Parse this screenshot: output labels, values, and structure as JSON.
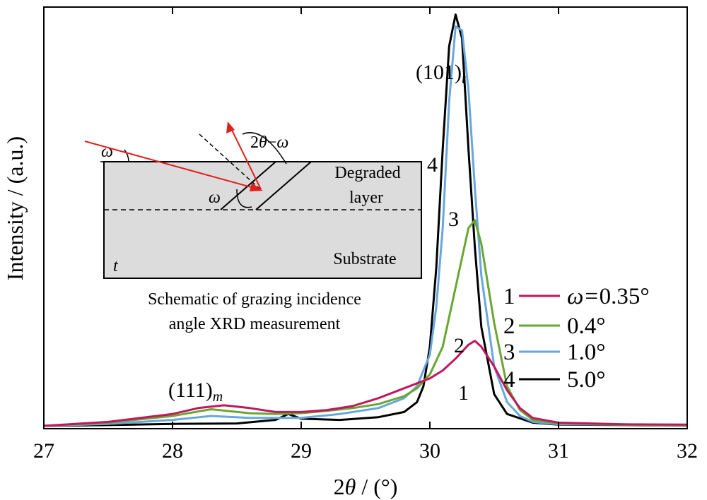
{
  "chart_data": {
    "type": "line",
    "xlabel": {
      "pre": "2",
      "sym": "θ",
      "post": " / (°)"
    },
    "ylabel": "Intensity / (a.u.)",
    "xlim": [
      27,
      32
    ],
    "ylim": [
      0,
      1.05
    ],
    "xticks": [
      "27",
      "28",
      "29",
      "30",
      "31",
      "32"
    ],
    "yticks_shown": false,
    "grid": false,
    "legend": {
      "position": "right",
      "title_prefix": "ω=",
      "entries": [
        {
          "num": "1",
          "label": "0.35°",
          "has_prefix": true,
          "color": "#c0185c"
        },
        {
          "num": "2",
          "label": "0.4°",
          "has_prefix": false,
          "color": "#6aa632"
        },
        {
          "num": "3",
          "label": "1.0°",
          "has_prefix": false,
          "color": "#68a7dc"
        },
        {
          "num": "4",
          "label": "5.0°",
          "has_prefix": false,
          "color": "#000000"
        }
      ]
    },
    "peak_labels": [
      {
        "main": "(101)",
        "sub": "t",
        "x": 30.2
      },
      {
        "main": "(111)",
        "sub": "m",
        "x": 28.2
      }
    ],
    "curve_labels": [
      {
        "text": "1",
        "x": 30.3,
        "y": 0.09
      },
      {
        "text": "2",
        "x": 30.3,
        "y": 0.23
      },
      {
        "text": "3",
        "x": 29.98,
        "y": 0.6
      },
      {
        "text": "4",
        "x": 29.82,
        "y": 0.76
      }
    ],
    "series": [
      {
        "name": "ω=0.35°",
        "color": "#c0185c",
        "x": [
          27.0,
          27.5,
          28.0,
          28.2,
          28.4,
          28.6,
          28.8,
          29.0,
          29.2,
          29.4,
          29.6,
          29.8,
          30.0,
          30.1,
          30.2,
          30.3,
          30.35,
          30.4,
          30.5,
          30.6,
          30.7,
          30.8,
          31.0,
          31.5,
          32.0
        ],
        "y": [
          0.0,
          0.01,
          0.03,
          0.045,
          0.052,
          0.045,
          0.035,
          0.035,
          0.04,
          0.05,
          0.07,
          0.095,
          0.12,
          0.14,
          0.17,
          0.205,
          0.215,
          0.2,
          0.15,
          0.09,
          0.045,
          0.02,
          0.008,
          0.004,
          0.003
        ]
      },
      {
        "name": "0.4°",
        "color": "#6aa632",
        "x": [
          27.0,
          27.5,
          28.0,
          28.3,
          28.6,
          28.8,
          29.0,
          29.2,
          29.4,
          29.6,
          29.8,
          29.9,
          30.0,
          30.1,
          30.2,
          30.3,
          30.35,
          30.4,
          30.5,
          30.6,
          30.7,
          30.8,
          31.0,
          31.5,
          32.0
        ],
        "y": [
          0.0,
          0.008,
          0.025,
          0.042,
          0.032,
          0.03,
          0.032,
          0.038,
          0.045,
          0.055,
          0.075,
          0.095,
          0.13,
          0.2,
          0.35,
          0.5,
          0.52,
          0.46,
          0.26,
          0.1,
          0.04,
          0.015,
          0.006,
          0.003,
          0.002
        ]
      },
      {
        "name": "1.0°",
        "color": "#68a7dc",
        "x": [
          27.0,
          27.5,
          28.0,
          28.3,
          28.6,
          29.0,
          29.3,
          29.6,
          29.8,
          29.9,
          30.0,
          30.05,
          30.1,
          30.15,
          30.2,
          30.25,
          30.3,
          30.35,
          30.4,
          30.5,
          30.6,
          30.7,
          30.8,
          31.0,
          32.0
        ],
        "y": [
          0.0,
          0.005,
          0.015,
          0.025,
          0.02,
          0.02,
          0.03,
          0.045,
          0.07,
          0.1,
          0.18,
          0.3,
          0.5,
          0.82,
          1.01,
          1.0,
          0.85,
          0.6,
          0.38,
          0.15,
          0.06,
          0.025,
          0.01,
          0.004,
          0.002
        ]
      },
      {
        "name": "5.0°",
        "color": "#000000",
        "x": [
          27.0,
          27.5,
          28.0,
          28.5,
          28.8,
          28.9,
          29.0,
          29.3,
          29.6,
          29.8,
          29.9,
          29.95,
          30.0,
          30.05,
          30.1,
          30.15,
          30.2,
          30.25,
          30.3,
          30.35,
          30.4,
          30.5,
          30.6,
          30.8,
          31.0,
          32.0
        ],
        "y": [
          0.0,
          0.002,
          0.005,
          0.006,
          0.015,
          0.03,
          0.018,
          0.015,
          0.022,
          0.035,
          0.06,
          0.1,
          0.2,
          0.4,
          0.7,
          0.96,
          1.04,
          0.98,
          0.7,
          0.45,
          0.25,
          0.08,
          0.03,
          0.008,
          0.003,
          0.001
        ]
      }
    ],
    "inset": {
      "omega": "ω",
      "angle_label": {
        "pre": "2",
        "theta": "θ",
        "minus": "−",
        "omega": "ω"
      },
      "layer_label_1": "Degraded",
      "layer_label_2": "layer",
      "substrate_label": "Substrate",
      "corner_label": "t",
      "caption_1": "Schematic of grazing incidence",
      "caption_2": "angle XRD measurement"
    }
  }
}
